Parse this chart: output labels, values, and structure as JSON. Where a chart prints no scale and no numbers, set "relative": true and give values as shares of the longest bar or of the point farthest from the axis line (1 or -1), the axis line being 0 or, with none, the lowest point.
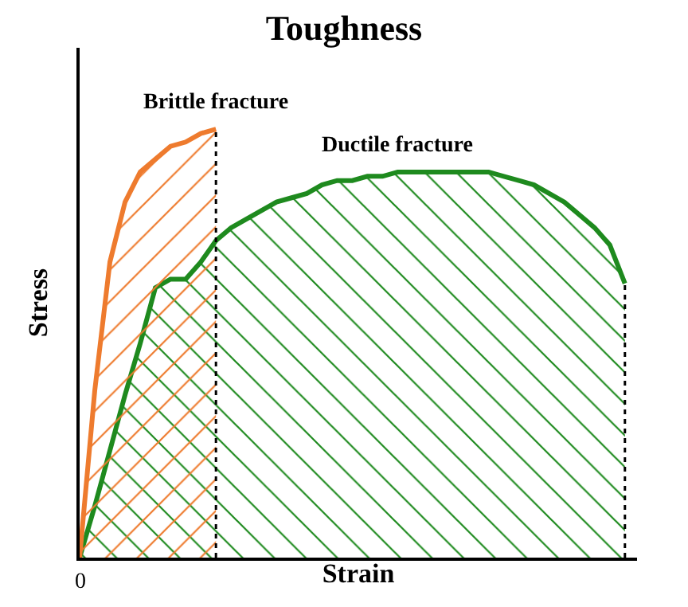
{
  "chart_data": {
    "type": "area",
    "title": "Toughness",
    "xlabel": "Strain",
    "ylabel": "Stress",
    "relative": true,
    "legend": false,
    "annotations": [
      "0"
    ],
    "categories": [
      null,
      null,
      null,
      null,
      null,
      null,
      null,
      null,
      null,
      null,
      null,
      null,
      null,
      null,
      null,
      null,
      null,
      null,
      null,
      null,
      null,
      null,
      null,
      null,
      null,
      null,
      null,
      null,
      null,
      null,
      null,
      null,
      null,
      null,
      null,
      null,
      null
    ],
    "series": [
      {
        "name": "Ductile fracture",
        "color": "#1e8a1e",
        "values": [
          0,
          0.12,
          0.25,
          0.38,
          0.5,
          0.63,
          0.65,
          0.65,
          0.69,
          0.74,
          0.77,
          0.79,
          0.81,
          0.83,
          0.84,
          0.85,
          0.87,
          0.88,
          0.88,
          0.89,
          0.89,
          0.9,
          0.9,
          0.9,
          0.9,
          0.9,
          0.9,
          0.9,
          0.89,
          0.88,
          0.87,
          0.85,
          0.83,
          0.8,
          0.77,
          0.73,
          0.64
        ]
      },
      {
        "name": "Brittle fracture",
        "color": "#ee7b2e",
        "values": [
          0,
          0.39,
          0.69,
          0.83,
          0.9,
          0.93,
          0.96,
          0.97,
          0.99,
          1,
          null,
          null,
          null,
          null,
          null,
          null,
          null,
          null,
          null,
          null,
          null,
          null,
          null,
          null,
          null,
          null,
          null,
          null,
          null,
          null,
          null,
          null,
          null,
          null,
          null,
          null,
          null
        ]
      }
    ]
  }
}
